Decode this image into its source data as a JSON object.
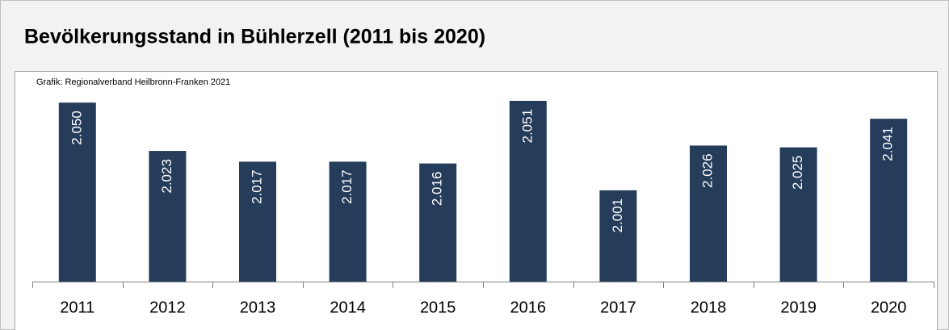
{
  "chart_data": {
    "type": "bar",
    "title": "Bevölkerungsstand in Bühlerzell (2011 bis 2020)",
    "subtitle": "Grafik: Regionalverband Heilbronn-Franken 2021",
    "categories": [
      "2011",
      "2012",
      "2013",
      "2014",
      "2015",
      "2016",
      "2017",
      "2018",
      "2019",
      "2020"
    ],
    "values": [
      2050,
      2023,
      2017,
      2017,
      2016,
      2051,
      2001,
      2026,
      2025,
      2041
    ],
    "value_labels": [
      "2.050",
      "2.023",
      "2.017",
      "2.017",
      "2.016",
      "2.051",
      "2.001",
      "2.026",
      "2.025",
      "2.041"
    ],
    "color": "#253d5b",
    "ylim": [
      1950,
      2060
    ]
  }
}
